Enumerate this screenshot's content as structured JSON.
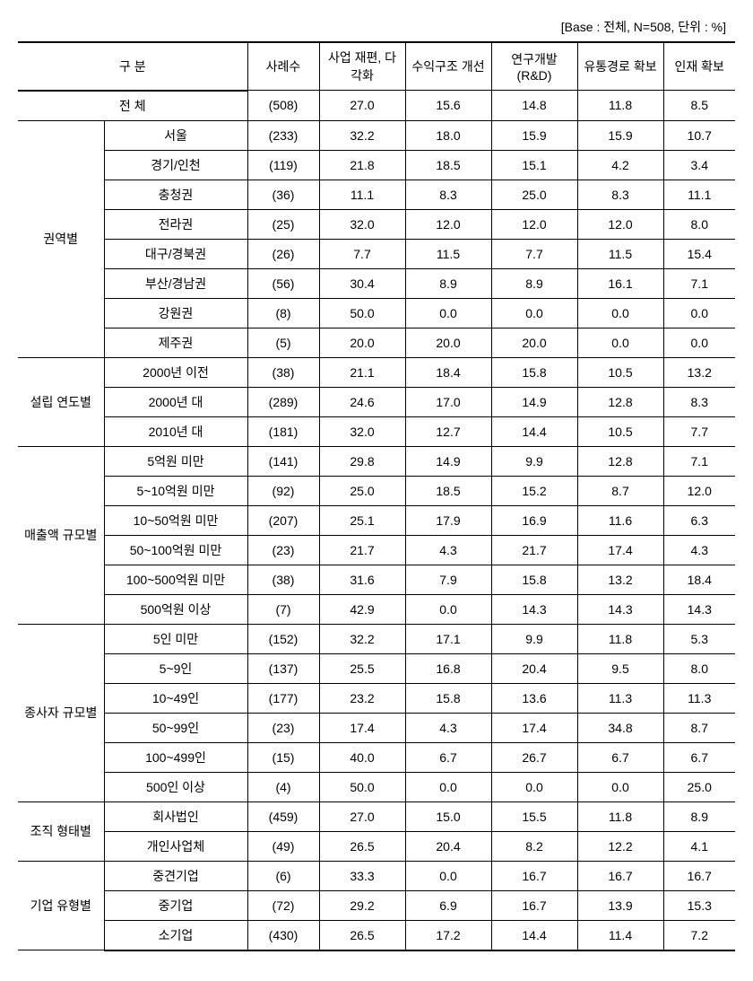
{
  "caption": "[Base : 전체, N=508, 단위 : %]",
  "headers": {
    "category": "구  분",
    "count": "사례수",
    "col1": "사업 재편, 다각화",
    "col2": "수익구조 개선",
    "col3": "연구개발 (R&D)",
    "col4": "유통경로 확보",
    "col5": "인재 확보"
  },
  "total": {
    "label": "전  체",
    "count": "(508)",
    "c1": "27.0",
    "c2": "15.6",
    "c3": "14.8",
    "c4": "11.8",
    "c5": "8.5"
  },
  "groups": [
    {
      "label": "권역별",
      "rows": [
        {
          "label": "서울",
          "count": "(233)",
          "c1": "32.2",
          "c2": "18.0",
          "c3": "15.9",
          "c4": "15.9",
          "c5": "10.7"
        },
        {
          "label": "경기/인천",
          "count": "(119)",
          "c1": "21.8",
          "c2": "18.5",
          "c3": "15.1",
          "c4": "4.2",
          "c5": "3.4"
        },
        {
          "label": "충청권",
          "count": "(36)",
          "c1": "11.1",
          "c2": "8.3",
          "c3": "25.0",
          "c4": "8.3",
          "c5": "11.1"
        },
        {
          "label": "전라권",
          "count": "(25)",
          "c1": "32.0",
          "c2": "12.0",
          "c3": "12.0",
          "c4": "12.0",
          "c5": "8.0"
        },
        {
          "label": "대구/경북권",
          "count": "(26)",
          "c1": "7.7",
          "c2": "11.5",
          "c3": "7.7",
          "c4": "11.5",
          "c5": "15.4"
        },
        {
          "label": "부산/경남권",
          "count": "(56)",
          "c1": "30.4",
          "c2": "8.9",
          "c3": "8.9",
          "c4": "16.1",
          "c5": "7.1"
        },
        {
          "label": "강원권",
          "count": "(8)",
          "c1": "50.0",
          "c2": "0.0",
          "c3": "0.0",
          "c4": "0.0",
          "c5": "0.0"
        },
        {
          "label": "제주권",
          "count": "(5)",
          "c1": "20.0",
          "c2": "20.0",
          "c3": "20.0",
          "c4": "0.0",
          "c5": "0.0"
        }
      ]
    },
    {
      "label": "설립 연도별",
      "rows": [
        {
          "label": "2000년 이전",
          "count": "(38)",
          "c1": "21.1",
          "c2": "18.4",
          "c3": "15.8",
          "c4": "10.5",
          "c5": "13.2"
        },
        {
          "label": "2000년 대",
          "count": "(289)",
          "c1": "24.6",
          "c2": "17.0",
          "c3": "14.9",
          "c4": "12.8",
          "c5": "8.3"
        },
        {
          "label": "2010년 대",
          "count": "(181)",
          "c1": "32.0",
          "c2": "12.7",
          "c3": "14.4",
          "c4": "10.5",
          "c5": "7.7"
        }
      ]
    },
    {
      "label": "매출액 규모별",
      "rows": [
        {
          "label": "5억원 미만",
          "count": "(141)",
          "c1": "29.8",
          "c2": "14.9",
          "c3": "9.9",
          "c4": "12.8",
          "c5": "7.1"
        },
        {
          "label": "5~10억원 미만",
          "count": "(92)",
          "c1": "25.0",
          "c2": "18.5",
          "c3": "15.2",
          "c4": "8.7",
          "c5": "12.0"
        },
        {
          "label": "10~50억원 미만",
          "count": "(207)",
          "c1": "25.1",
          "c2": "17.9",
          "c3": "16.9",
          "c4": "11.6",
          "c5": "6.3"
        },
        {
          "label": "50~100억원 미만",
          "count": "(23)",
          "c1": "21.7",
          "c2": "4.3",
          "c3": "21.7",
          "c4": "17.4",
          "c5": "4.3"
        },
        {
          "label": "100~500억원 미만",
          "count": "(38)",
          "c1": "31.6",
          "c2": "7.9",
          "c3": "15.8",
          "c4": "13.2",
          "c5": "18.4"
        },
        {
          "label": "500억원 이상",
          "count": "(7)",
          "c1": "42.9",
          "c2": "0.0",
          "c3": "14.3",
          "c4": "14.3",
          "c5": "14.3"
        }
      ]
    },
    {
      "label": "종사자 규모별",
      "rows": [
        {
          "label": "5인 미만",
          "count": "(152)",
          "c1": "32.2",
          "c2": "17.1",
          "c3": "9.9",
          "c4": "11.8",
          "c5": "5.3"
        },
        {
          "label": "5~9인",
          "count": "(137)",
          "c1": "25.5",
          "c2": "16.8",
          "c3": "20.4",
          "c4": "9.5",
          "c5": "8.0"
        },
        {
          "label": "10~49인",
          "count": "(177)",
          "c1": "23.2",
          "c2": "15.8",
          "c3": "13.6",
          "c4": "11.3",
          "c5": "11.3"
        },
        {
          "label": "50~99인",
          "count": "(23)",
          "c1": "17.4",
          "c2": "4.3",
          "c3": "17.4",
          "c4": "34.8",
          "c5": "8.7"
        },
        {
          "label": "100~499인",
          "count": "(15)",
          "c1": "40.0",
          "c2": "6.7",
          "c3": "26.7",
          "c4": "6.7",
          "c5": "6.7"
        },
        {
          "label": "500인 이상",
          "count": "(4)",
          "c1": "50.0",
          "c2": "0.0",
          "c3": "0.0",
          "c4": "0.0",
          "c5": "25.0"
        }
      ]
    },
    {
      "label": "조직 형태별",
      "rows": [
        {
          "label": "회사법인",
          "count": "(459)",
          "c1": "27.0",
          "c2": "15.0",
          "c3": "15.5",
          "c4": "11.8",
          "c5": "8.9"
        },
        {
          "label": "개인사업체",
          "count": "(49)",
          "c1": "26.5",
          "c2": "20.4",
          "c3": "8.2",
          "c4": "12.2",
          "c5": "4.1"
        }
      ]
    },
    {
      "label": "기업 유형별",
      "rows": [
        {
          "label": "중견기업",
          "count": "(6)",
          "c1": "33.3",
          "c2": "0.0",
          "c3": "16.7",
          "c4": "16.7",
          "c5": "16.7"
        },
        {
          "label": "중기업",
          "count": "(72)",
          "c1": "29.2",
          "c2": "6.9",
          "c3": "16.7",
          "c4": "13.9",
          "c5": "15.3"
        },
        {
          "label": "소기업",
          "count": "(430)",
          "c1": "26.5",
          "c2": "17.2",
          "c3": "14.4",
          "c4": "11.4",
          "c5": "7.2"
        }
      ]
    }
  ],
  "styling": {
    "border_color": "#000000",
    "background": "#ffffff",
    "font_size": 14,
    "heavy_border_width": 2,
    "light_border_width": 1,
    "col_widths_pct": [
      12,
      20,
      10,
      12,
      12,
      12,
      12,
      10
    ]
  }
}
